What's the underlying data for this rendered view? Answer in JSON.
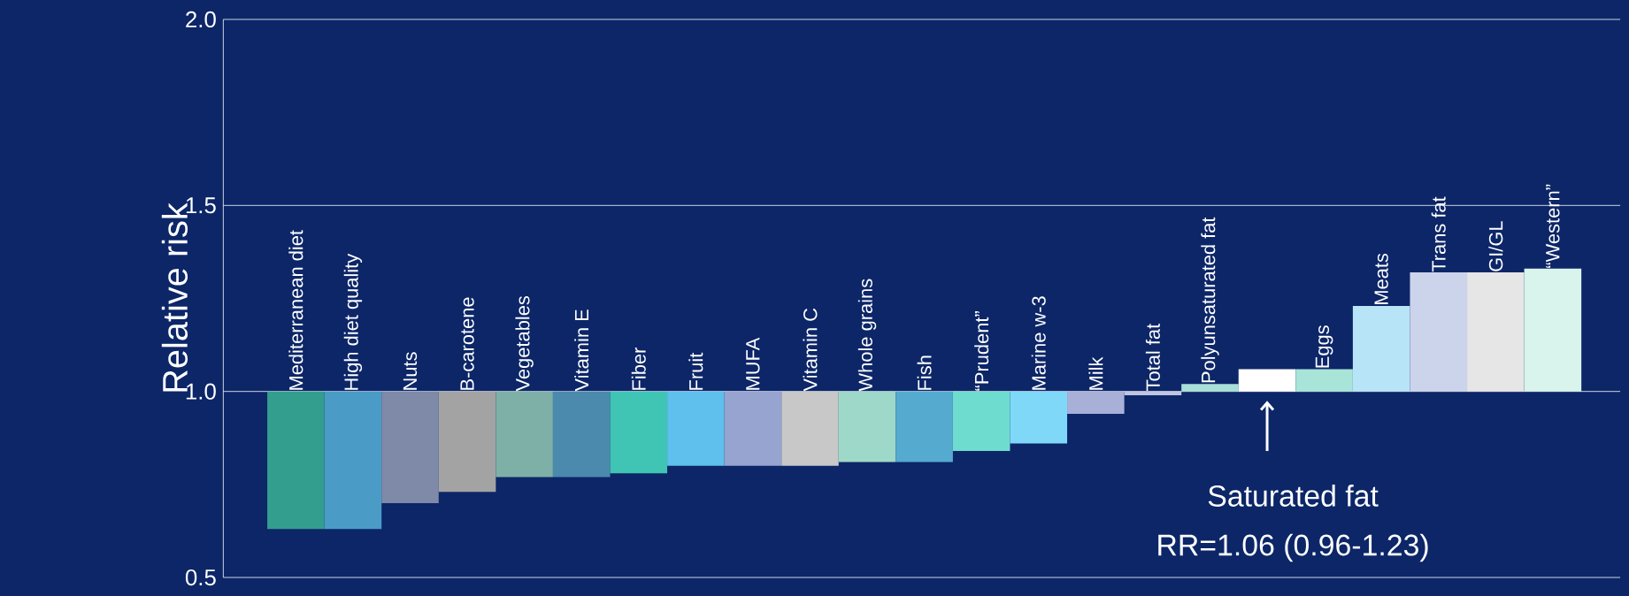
{
  "chart_data": {
    "type": "bar",
    "ylabel": "Relative risk",
    "categories": [
      "Mediterranean  diet",
      "High diet quality",
      "Nuts",
      "B-carotene",
      "Vegetables",
      "Vitamin E",
      "Fiber",
      "Fruit",
      "MUFA",
      "Vitamin C",
      "Whole grains",
      "Fish",
      "“Prudent”",
      "Marine w-3",
      "Milk",
      "Total fat",
      "Polyunsaturated fat",
      null,
      "Eggs",
      "Meats",
      "Trans fat",
      "GI/GL",
      "“Western”"
    ],
    "values": [
      -0.37,
      -0.37,
      -0.3,
      -0.27,
      -0.23,
      -0.23,
      -0.22,
      -0.2,
      -0.2,
      -0.2,
      -0.19,
      -0.19,
      -0.16,
      -0.14,
      -0.06,
      -0.01,
      0.02,
      0.06,
      0.06,
      0.23,
      0.32,
      0.32,
      0.33
    ],
    "base": [
      1,
      1,
      1,
      1,
      1,
      1,
      1,
      1,
      1,
      1,
      1,
      1,
      1,
      1,
      1,
      1,
      1,
      1,
      1,
      1,
      1,
      1,
      1
    ],
    "colors": [
      "#339e8e",
      "#4a9cc6",
      "#7f8aa8",
      "#a3a3a3",
      "#7fb0a8",
      "#4b8aad",
      "#40c4b4",
      "#5fbfed",
      "#98a4d0",
      "#c8c8c8",
      "#9ed8c8",
      "#55aad0",
      "#6fdcd0",
      "#80d8f8",
      "#a8b0d8",
      "#c0c4e0",
      "#a8e0d8",
      "#ffffff",
      "#a8e4d8",
      "#b8e4f8",
      "#ccd4ec",
      "#e6e6e6",
      "#d8f4ec"
    ],
    "ylim": [
      0.5,
      2.0
    ],
    "yticks": [
      0.5,
      {
        "value": 1,
        "label": "1.0"
      },
      1.5,
      {
        "value": 2,
        "label": "2.0"
      }
    ],
    "grid": "y",
    "annotations": [
      "Saturated fat",
      "RR=1.06 (0.96-1.23)"
    ]
  }
}
